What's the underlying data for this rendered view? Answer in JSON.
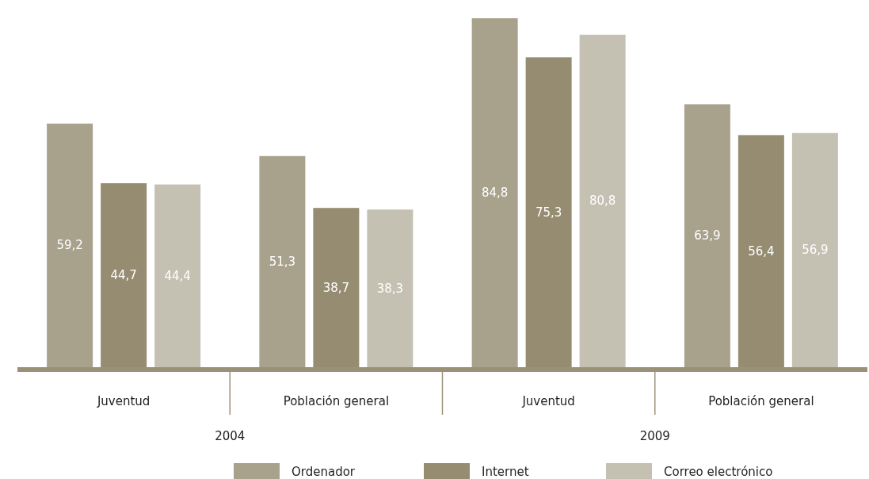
{
  "chart_data": {
    "type": "bar",
    "categories": [
      "Juventud",
      "Población general",
      "Juventud",
      "Población general"
    ],
    "series": [
      {
        "name": "Ordenador",
        "color": "#a8a18c",
        "values": [
          59.2,
          51.3,
          84.8,
          63.9
        ],
        "value_labels": [
          "59,2",
          "51,3",
          "84,8",
          "63,9"
        ]
      },
      {
        "name": "Internet",
        "color": "#968c72",
        "values": [
          44.7,
          38.7,
          75.3,
          56.4
        ],
        "value_labels": [
          "44,7",
          "38,7",
          "75,3",
          "56,4"
        ]
      },
      {
        "name": "Correo electrónico",
        "color": "#c4c1b3",
        "values": [
          44.4,
          38.3,
          80.8,
          56.9
        ],
        "value_labels": [
          "44,4",
          "38,3",
          "80,8",
          "56,9"
        ]
      }
    ],
    "annotations": [
      "2004",
      "2009"
    ],
    "legend": "bottom"
  }
}
